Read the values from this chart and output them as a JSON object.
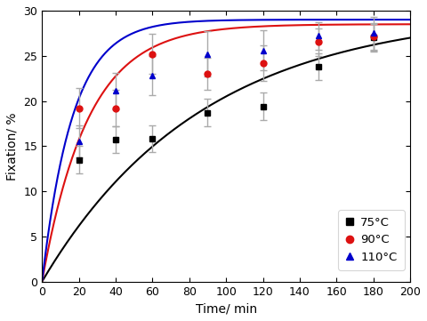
{
  "series": [
    {
      "label": "75°C",
      "color": "black",
      "marker": "s",
      "x": [
        20,
        40,
        60,
        90,
        120,
        150,
        180
      ],
      "y": [
        13.5,
        15.7,
        15.8,
        18.7,
        19.4,
        23.8,
        27.0
      ],
      "yerr": [
        1.5,
        1.5,
        1.5,
        1.5,
        1.5,
        1.5,
        1.5
      ],
      "fit_A": 30.0,
      "fit_k": 0.0115
    },
    {
      "label": "90°C",
      "color": "#dd1111",
      "marker": "o",
      "x": [
        20,
        40,
        60,
        90,
        120,
        150,
        180
      ],
      "y": [
        19.2,
        19.2,
        25.2,
        23.0,
        24.2,
        26.5,
        27.1
      ],
      "yerr": [
        2.2,
        2.0,
        2.2,
        1.8,
        2.0,
        1.5,
        1.5
      ],
      "fit_A": 28.5,
      "fit_k": 0.04
    },
    {
      "label": "110°C",
      "color": "#0000cc",
      "marker": "^",
      "x": [
        20,
        40,
        60,
        90,
        120,
        150,
        180
      ],
      "y": [
        15.5,
        21.1,
        22.8,
        25.2,
        25.6,
        27.2,
        27.5
      ],
      "yerr": [
        1.8,
        2.0,
        2.2,
        2.5,
        2.2,
        1.5,
        1.8
      ],
      "fit_A": 29.0,
      "fit_k": 0.06
    }
  ],
  "xlabel": "Time/ min",
  "ylabel": "Fixation/ %",
  "xlim": [
    0,
    200
  ],
  "ylim": [
    0,
    30
  ],
  "xticks": [
    0,
    20,
    40,
    60,
    80,
    100,
    120,
    140,
    160,
    180,
    200
  ],
  "yticks": [
    0,
    5,
    10,
    15,
    20,
    25,
    30
  ],
  "figure_width": 4.8,
  "figure_height": 3.61,
  "dpi": 100,
  "ecolor": "#aaaaaa",
  "elinewidth": 1.0,
  "capsize": 3,
  "markersize": 5,
  "linewidth": 1.5
}
